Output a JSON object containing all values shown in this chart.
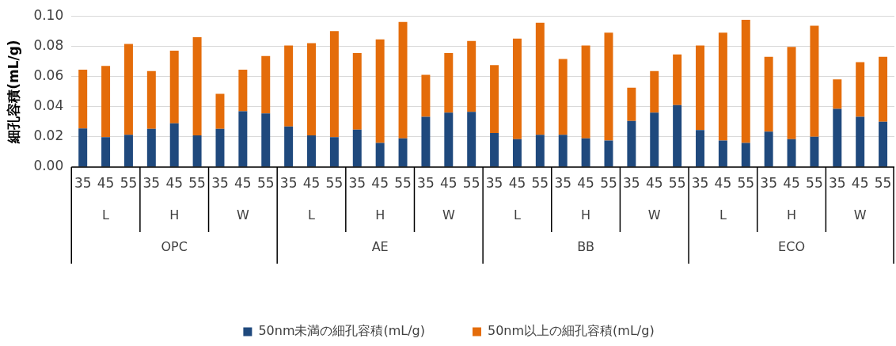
{
  "chart_data": {
    "type": "bar",
    "stacked": true,
    "ylabel": "細孔容積(mL/g)",
    "categories": [
      "35",
      "45",
      "55",
      "35",
      "45",
      "55",
      "35",
      "45",
      "55",
      "35",
      "45",
      "55",
      "35",
      "45",
      "55",
      "35",
      "45",
      "55",
      "35",
      "45",
      "55",
      "35",
      "45",
      "55",
      "35",
      "45",
      "55",
      "35",
      "45",
      "55",
      "35",
      "45",
      "55",
      "35",
      "45",
      "55"
    ],
    "series": [
      {
        "name": "50nm未満の細孔容積(mL/g)",
        "color": "#1f497d",
        "values": [
          0.0255,
          0.0198,
          0.0213,
          0.0253,
          0.029,
          0.021,
          0.0253,
          0.037,
          0.0355,
          0.0268,
          0.021,
          0.0198,
          0.0248,
          0.016,
          0.019,
          0.0333,
          0.036,
          0.0365,
          0.0225,
          0.0185,
          0.0213,
          0.0213,
          0.019,
          0.0175,
          0.0305,
          0.036,
          0.041,
          0.0245,
          0.0175,
          0.016,
          0.0235,
          0.0185,
          0.02,
          0.0385,
          0.0333,
          0.03
        ]
      },
      {
        "name": "50nm以上の細孔容積(mL/g)",
        "color": "#e46c0a",
        "values": [
          0.039,
          0.0472,
          0.0602,
          0.0382,
          0.048,
          0.065,
          0.0232,
          0.0275,
          0.038,
          0.0537,
          0.061,
          0.0702,
          0.0507,
          0.0685,
          0.077,
          0.0277,
          0.0395,
          0.047,
          0.045,
          0.0665,
          0.0742,
          0.0502,
          0.0615,
          0.0715,
          0.022,
          0.0275,
          0.0335,
          0.056,
          0.0715,
          0.0815,
          0.0495,
          0.061,
          0.0735,
          0.0195,
          0.0362,
          0.043
        ]
      }
    ],
    "ylim": [
      0,
      0.1
    ],
    "yticks": [
      {
        "value": 0,
        "label": "0.00"
      },
      {
        "value": 0.02,
        "label": "0.02"
      },
      {
        "value": 0.04,
        "label": "0.04"
      },
      {
        "value": 0.06,
        "label": "0.06"
      },
      {
        "value": 0.08,
        "label": "0.08"
      },
      {
        "value": 0.1,
        "label": "0.10"
      }
    ],
    "grid": "y",
    "legend": "bottom",
    "annotations": [
      "L",
      "H",
      "W",
      "L",
      "H",
      "W",
      "L",
      "H",
      "W",
      "L",
      "H",
      "W",
      "OPC",
      "AE",
      "BB",
      "ECO"
    ]
  }
}
